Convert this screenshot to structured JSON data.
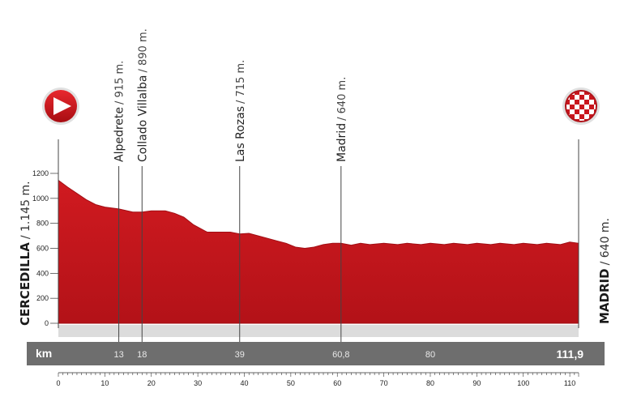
{
  "chart_data": {
    "type": "area",
    "title": "",
    "xlabel": "",
    "ylabel": "",
    "x_unit_label": "km",
    "xlim": [
      0,
      111.9
    ],
    "ylim": [
      0,
      1200
    ],
    "y_ticks": [
      "0",
      "200",
      "400",
      "600",
      "800",
      "1000",
      "1200"
    ],
    "x_ticks": [
      "0",
      "10",
      "20",
      "30",
      "40",
      "50",
      "60",
      "70",
      "80",
      "90",
      "100",
      "110"
    ],
    "series": [
      {
        "x": [
          0,
          2,
          4,
          6,
          8,
          10,
          13,
          16,
          18,
          20,
          23,
          25,
          27,
          29,
          31,
          32,
          33,
          35,
          37,
          39,
          41,
          43,
          45,
          47,
          49,
          51,
          53,
          55,
          57,
          59,
          60.8,
          63,
          65,
          67,
          70,
          73,
          75,
          78,
          80,
          83,
          85,
          88,
          90,
          93,
          95,
          98,
          100,
          103,
          105,
          108,
          110,
          111.9
        ],
        "y": [
          1145,
          1090,
          1040,
          990,
          950,
          930,
          915,
          890,
          890,
          900,
          900,
          880,
          850,
          790,
          750,
          730,
          730,
          730,
          730,
          715,
          720,
          700,
          680,
          660,
          640,
          610,
          600,
          610,
          630,
          640,
          640,
          625,
          640,
          630,
          640,
          630,
          640,
          630,
          640,
          630,
          640,
          630,
          640,
          630,
          640,
          630,
          640,
          630,
          640,
          630,
          650,
          640
        ]
      }
    ],
    "waypoints": [
      {
        "km": 13,
        "km_label": "13",
        "name": "Alpedrete",
        "alt": "915 m."
      },
      {
        "km": 18,
        "km_label": "18",
        "name": "Collado Villalba",
        "alt": "890 m."
      },
      {
        "km": 39,
        "km_label": "39",
        "name": "Las Rozas",
        "alt": "715 m."
      },
      {
        "km": 60.8,
        "km_label": "60,8",
        "name": "Madrid",
        "alt": "640 m."
      }
    ],
    "km_bar_extra": [
      {
        "km": 80,
        "label": "80"
      }
    ],
    "km_total_label": "111,9",
    "start": {
      "name": "CERCEDILLA",
      "alt": "1.145 m."
    },
    "finish": {
      "name": "MADRID",
      "alt": "640 m."
    },
    "colors": {
      "fill": "#c9161d",
      "fill_dark": "#a10e14",
      "km_bar": "#6e6e6e",
      "base_band": "#dcdcdc"
    }
  }
}
